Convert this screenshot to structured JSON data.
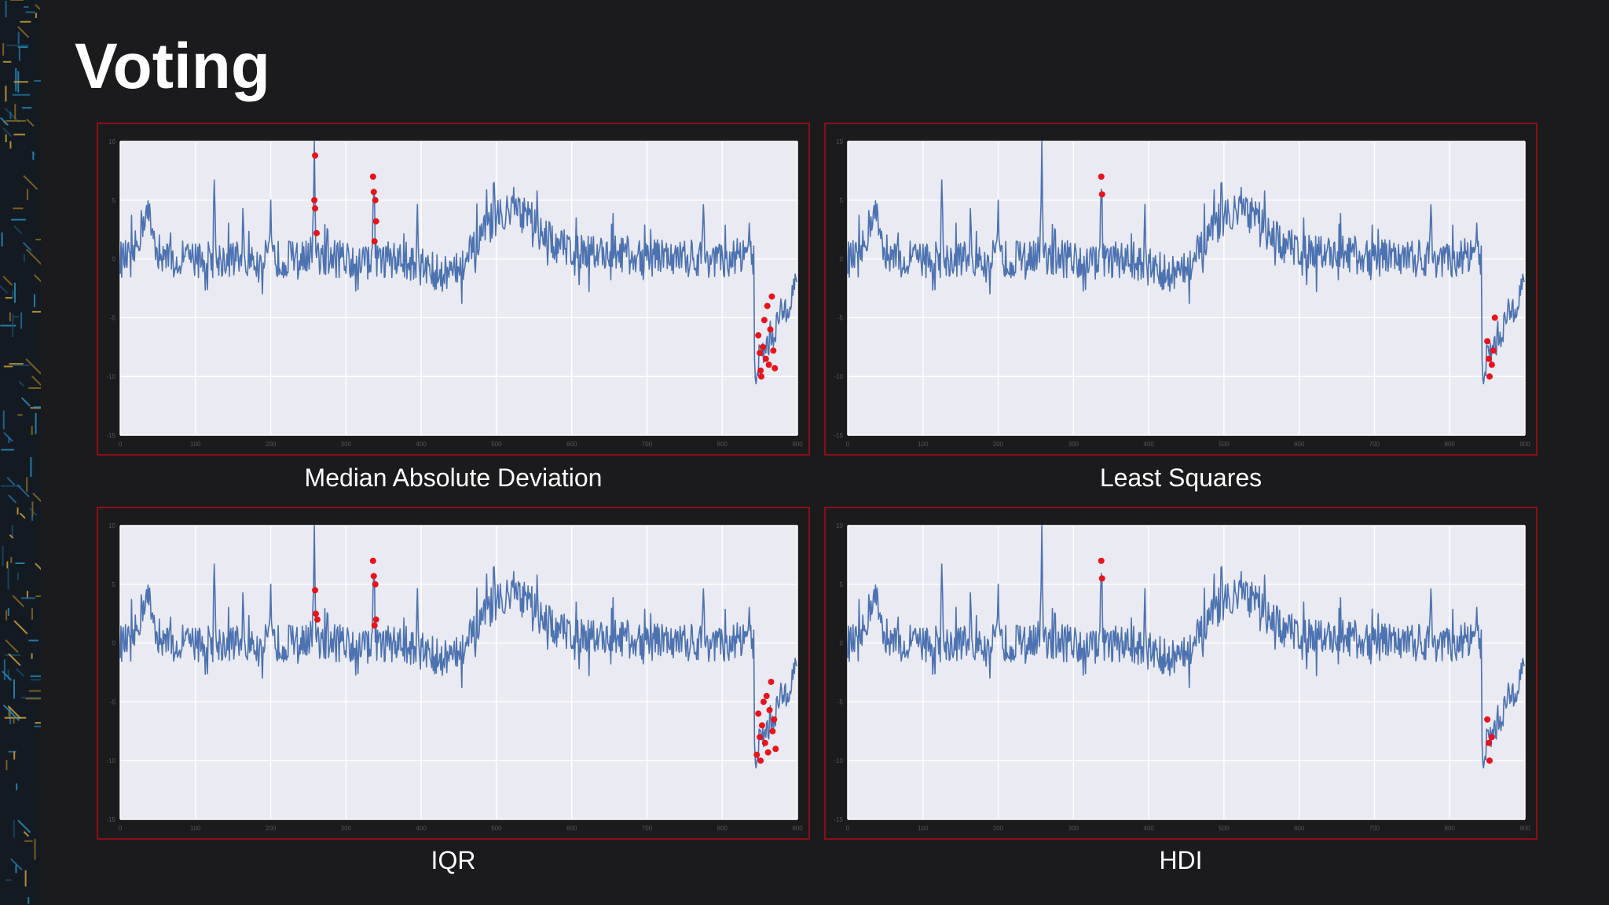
{
  "slide": {
    "title": "Voting"
  },
  "style": {
    "line_color": "#4c72b0",
    "anomaly_color": "#e8141c",
    "plot_bg": "#eaeaf2",
    "frame_color": "#8a0f14"
  },
  "chart_data": [
    {
      "type": "line",
      "caption": "Median Absolute Deviation",
      "xlim": [
        0,
        900
      ],
      "ylim": [
        -15,
        10
      ],
      "xticks": [
        0,
        100,
        200,
        300,
        400,
        500,
        600,
        700,
        800,
        900
      ],
      "yticks": [
        -15,
        -10,
        -5,
        0,
        5,
        10
      ],
      "grid": true,
      "series": [
        {
          "description": "noisy signal around 0 with spikes near x=35, 125, 160, 255, 335, 510, 775 and a drop to about -10 near x=850"
        }
      ],
      "anomalies": [
        {
          "x": 259,
          "y": 8.8
        },
        {
          "x": 258,
          "y": 5.0
        },
        {
          "x": 259,
          "y": 4.3
        },
        {
          "x": 261,
          "y": 2.2
        },
        {
          "x": 336,
          "y": 7.0
        },
        {
          "x": 337,
          "y": 5.7
        },
        {
          "x": 339,
          "y": 5.0
        },
        {
          "x": 340,
          "y": 3.2
        },
        {
          "x": 338,
          "y": 1.5
        },
        {
          "x": 848,
          "y": -6.5
        },
        {
          "x": 850,
          "y": -8.0
        },
        {
          "x": 851,
          "y": -9.5
        },
        {
          "x": 852,
          "y": -10.0
        },
        {
          "x": 854,
          "y": -7.5
        },
        {
          "x": 856,
          "y": -5.2
        },
        {
          "x": 858,
          "y": -8.5
        },
        {
          "x": 860,
          "y": -4.0
        },
        {
          "x": 862,
          "y": -9.0
        },
        {
          "x": 864,
          "y": -6.0
        },
        {
          "x": 866,
          "y": -3.2
        },
        {
          "x": 868,
          "y": -7.8
        },
        {
          "x": 870,
          "y": -9.3
        }
      ]
    },
    {
      "type": "line",
      "caption": "Least Squares",
      "xlim": [
        0,
        900
      ],
      "ylim": [
        -15,
        10
      ],
      "xticks": [
        0,
        100,
        200,
        300,
        400,
        500,
        600,
        700,
        800,
        900
      ],
      "yticks": [
        -15,
        -10,
        -5,
        0,
        5,
        10
      ],
      "grid": true,
      "series": [
        {
          "description": "same signal"
        }
      ],
      "anomalies": [
        {
          "x": 337,
          "y": 7.0
        },
        {
          "x": 338,
          "y": 5.5
        },
        {
          "x": 850,
          "y": -7.0
        },
        {
          "x": 852,
          "y": -8.5
        },
        {
          "x": 853,
          "y": -10.0
        },
        {
          "x": 856,
          "y": -9.0
        },
        {
          "x": 858,
          "y": -7.8
        },
        {
          "x": 860,
          "y": -5.0
        }
      ]
    },
    {
      "type": "line",
      "caption": "IQR",
      "xlim": [
        0,
        900
      ],
      "ylim": [
        -15,
        10
      ],
      "xticks": [
        0,
        100,
        200,
        300,
        400,
        500,
        600,
        700,
        800,
        900
      ],
      "yticks": [
        -15,
        -10,
        -5,
        0,
        5,
        10
      ],
      "grid": true,
      "series": [
        {
          "description": "same signal"
        }
      ],
      "anomalies": [
        {
          "x": 259,
          "y": 4.5
        },
        {
          "x": 260,
          "y": 2.5
        },
        {
          "x": 262,
          "y": 2.0
        },
        {
          "x": 336,
          "y": 7.0
        },
        {
          "x": 337,
          "y": 5.7
        },
        {
          "x": 339,
          "y": 5.0
        },
        {
          "x": 340,
          "y": 2.0
        },
        {
          "x": 338,
          "y": 1.5
        },
        {
          "x": 846,
          "y": -9.5
        },
        {
          "x": 848,
          "y": -6.0
        },
        {
          "x": 850,
          "y": -8.0
        },
        {
          "x": 851,
          "y": -10.0
        },
        {
          "x": 853,
          "y": -7.0
        },
        {
          "x": 855,
          "y": -5.0
        },
        {
          "x": 857,
          "y": -8.5
        },
        {
          "x": 859,
          "y": -4.5
        },
        {
          "x": 861,
          "y": -9.3
        },
        {
          "x": 863,
          "y": -5.7
        },
        {
          "x": 865,
          "y": -3.3
        },
        {
          "x": 867,
          "y": -7.5
        },
        {
          "x": 869,
          "y": -6.5
        },
        {
          "x": 871,
          "y": -9.0
        }
      ]
    },
    {
      "type": "line",
      "caption": "HDI",
      "xlim": [
        0,
        900
      ],
      "ylim": [
        -15,
        10
      ],
      "xticks": [
        0,
        100,
        200,
        300,
        400,
        500,
        600,
        700,
        800,
        900
      ],
      "yticks": [
        -15,
        -10,
        -5,
        0,
        5,
        10
      ],
      "grid": true,
      "series": [
        {
          "description": "same signal"
        }
      ],
      "anomalies": [
        {
          "x": 337,
          "y": 7.0
        },
        {
          "x": 338,
          "y": 5.5
        },
        {
          "x": 850,
          "y": -6.5
        },
        {
          "x": 852,
          "y": -8.5
        },
        {
          "x": 853,
          "y": -10.0
        },
        {
          "x": 856,
          "y": -8.0
        }
      ]
    }
  ]
}
